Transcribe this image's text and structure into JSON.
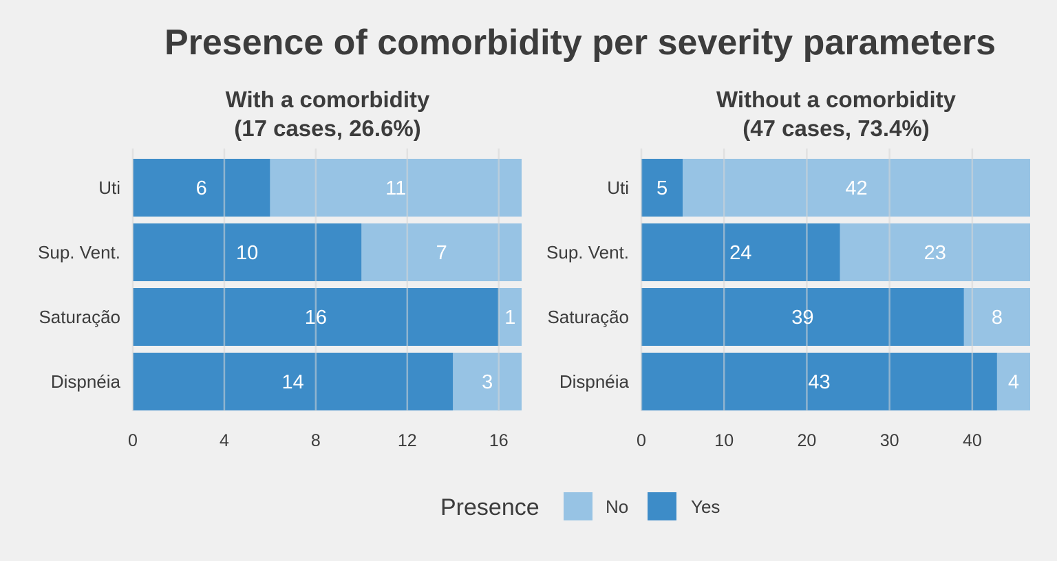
{
  "chart_data": {
    "type": "bar",
    "orientation": "horizontal",
    "stacked": true,
    "title": "Presence of comorbidity per severity parameters",
    "legend": {
      "title": "Presence",
      "placement": "bottom",
      "entries": [
        {
          "label": "No",
          "color": "#97c3e4"
        },
        {
          "label": "Yes",
          "color": "#3d8cc8"
        }
      ]
    },
    "categories": [
      "Uti",
      "Sup. Vent.",
      "Saturação",
      "Dispnéia"
    ],
    "panels": [
      {
        "title_line1": "With a comorbidity",
        "title_line2": "(17 cases, 26.6%)",
        "xlim": [
          0,
          17
        ],
        "ticks": [
          0,
          4,
          8,
          12,
          16
        ],
        "grid": true,
        "series": [
          {
            "name": "Yes",
            "values": [
              6,
              10,
              16,
              14
            ]
          },
          {
            "name": "No",
            "values": [
              11,
              7,
              1,
              3
            ]
          }
        ]
      },
      {
        "title_line1": "Without a comorbidity",
        "title_line2": "(47 cases, 73.4%)",
        "xlim": [
          0,
          47
        ],
        "ticks": [
          0,
          10,
          20,
          30,
          40
        ],
        "grid": true,
        "series": [
          {
            "name": "Yes",
            "values": [
              5,
              24,
              39,
              43
            ]
          },
          {
            "name": "No",
            "values": [
              42,
              23,
              8,
              4
            ]
          }
        ]
      }
    ]
  }
}
